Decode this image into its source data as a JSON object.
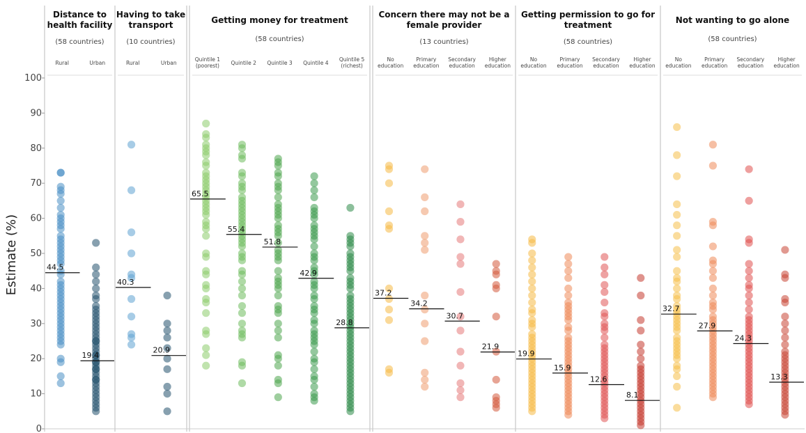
{
  "chart_data": {
    "type": "scatter",
    "ylabel": "Estimate (%)",
    "ylim": [
      0,
      100
    ],
    "yticks": [
      0,
      10,
      20,
      30,
      40,
      50,
      60,
      70,
      80,
      90,
      100
    ],
    "grid": false,
    "panels": [
      {
        "id": "distance",
        "title_lines": [
          "Distance to",
          "health facility"
        ],
        "count": "(58 countries)",
        "palette": [
          "#4a90c4",
          "#24526e"
        ],
        "groups": [
          {
            "name": [
              "Rural"
            ],
            "median": 44.5,
            "values": [
              73,
              73,
              69,
              68,
              67,
              65,
              63,
              61,
              60,
              59,
              58,
              57,
              55,
              54,
              53,
              52,
              51,
              50,
              49,
              48,
              47,
              45,
              44,
              42,
              41,
              40,
              39,
              38,
              37,
              36,
              35,
              34,
              33,
              32,
              31,
              30,
              29,
              28,
              27,
              26,
              25,
              24,
              20,
              19,
              15,
              13
            ]
          },
          {
            "name": [
              "Urban"
            ],
            "median": 19.4,
            "values": [
              53,
              46,
              44,
              42,
              40,
              38,
              37,
              35,
              34,
              33,
              32,
              31,
              30,
              29,
              28,
              27,
              26,
              25,
              25,
              24,
              23,
              22,
              21,
              21,
              20,
              19,
              19,
              18,
              17,
              17,
              16,
              15,
              14,
              14,
              13,
              12,
              11,
              10,
              9,
              8,
              7,
              6,
              5
            ]
          }
        ]
      },
      {
        "id": "transport",
        "title_lines": [
          "Having to take",
          "transport"
        ],
        "count": "(10 countries)",
        "palette": [
          "#5fa3d1",
          "#24526e"
        ],
        "groups": [
          {
            "name": [
              "Rural"
            ],
            "median": 40.3,
            "values": [
              81,
              68,
              56,
              50,
              44,
              43,
              37,
              32,
              27,
              26,
              24
            ]
          },
          {
            "name": [
              "Urban"
            ],
            "median": 20.9,
            "values": [
              38,
              30,
              28,
              26,
              23,
              20,
              17,
              12,
              10,
              5
            ]
          }
        ]
      },
      {
        "id": "money",
        "title_lines": [
          "Getting money for treatment"
        ],
        "count": "(58 countries)",
        "palette": [
          "#8ccc6b",
          "#6dbb5c",
          "#4ea64f",
          "#3c9a4e",
          "#2e8a49"
        ],
        "groups": [
          {
            "name": [
              "Quintile 1",
              "(poorest)"
            ],
            "median": 65.5,
            "values": [
              87,
              84,
              83,
              81,
              80,
              79,
              78,
              76,
              75,
              73,
              72,
              71,
              70,
              69,
              68,
              67,
              66,
              65,
              64,
              63,
              62,
              61,
              59,
              58,
              57,
              55,
              50,
              49,
              45,
              44,
              41,
              40,
              37,
              36,
              33,
              28,
              27,
              23,
              21,
              18
            ]
          },
          {
            "name": [
              "Quintile 2"
            ],
            "median": 55.4,
            "values": [
              81,
              80,
              78,
              77,
              73,
              72,
              70,
              69,
              68,
              66,
              65,
              64,
              63,
              62,
              61,
              60,
              59,
              58,
              57,
              56,
              55,
              54,
              53,
              52,
              50,
              49,
              48,
              45,
              44,
              42,
              40,
              38,
              35,
              33,
              30,
              28,
              27,
              26,
              19,
              18,
              13
            ]
          },
          {
            "name": [
              "Quintile 3"
            ],
            "median": 51.8,
            "values": [
              77,
              76,
              75,
              73,
              72,
              70,
              69,
              68,
              66,
              64,
              63,
              62,
              61,
              60,
              58,
              57,
              56,
              55,
              53,
              51,
              50,
              49,
              48,
              45,
              43,
              42,
              41,
              40,
              38,
              35,
              34,
              33,
              30,
              28,
              26,
              21,
              20,
              18,
              14,
              13,
              9
            ]
          },
          {
            "name": [
              "Quintile 4"
            ],
            "median": 42.9,
            "values": [
              72,
              70,
              68,
              66,
              63,
              62,
              61,
              60,
              58,
              57,
              56,
              55,
              54,
              52,
              50,
              49,
              48,
              46,
              45,
              44,
              42,
              41,
              40,
              38,
              37,
              35,
              34,
              33,
              31,
              30,
              28,
              27,
              26,
              25,
              24,
              22,
              20,
              19,
              17,
              15,
              14,
              12,
              10,
              9,
              8
            ]
          },
          {
            "name": [
              "Quintile 5",
              "(richest)"
            ],
            "median": 28.8,
            "values": [
              63,
              55,
              54,
              53,
              52,
              50,
              49,
              48,
              47,
              46,
              45,
              43,
              42,
              41,
              40,
              38,
              37,
              36,
              35,
              34,
              33,
              32,
              31,
              30,
              29,
              28,
              27,
              26,
              25,
              24,
              23,
              22,
              21,
              20,
              19,
              18,
              17,
              16,
              15,
              14,
              13,
              12,
              11,
              10,
              9,
              8,
              7,
              6,
              5
            ]
          }
        ]
      },
      {
        "id": "female",
        "title_lines": [
          "Concern there may not be a",
          "female provider"
        ],
        "count": "(13 countries)",
        "palette": [
          "#f5b945",
          "#ef9c6f",
          "#e57a7a",
          "#d45a3c"
        ],
        "groups": [
          {
            "name": [
              "No",
              "education"
            ],
            "median": 37.2,
            "values": [
              75,
              74,
              70,
              62,
              58,
              57,
              40,
              37,
              34,
              31,
              17,
              16
            ]
          },
          {
            "name": [
              "Primary",
              "education"
            ],
            "median": 34.2,
            "values": [
              74,
              66,
              62,
              55,
              53,
              51,
              38,
              34,
              30,
              25,
              16,
              14,
              12
            ]
          },
          {
            "name": [
              "Secondary",
              "education"
            ],
            "median": 30.7,
            "values": [
              64,
              59,
              54,
              49,
              47,
              39,
              32,
              28,
              22,
              18,
              13,
              11,
              9
            ]
          },
          {
            "name": [
              "Higher",
              "education"
            ],
            "median": 21.9,
            "values": [
              47,
              45,
              44,
              41,
              40,
              32,
              22,
              14,
              9,
              8,
              7,
              6
            ]
          }
        ]
      },
      {
        "id": "permission",
        "title_lines": [
          "Getting permission to go for",
          "treatment"
        ],
        "count": "(58 countries)",
        "palette": [
          "#f5b945",
          "#ef8a5a",
          "#e05555",
          "#c43a30"
        ],
        "groups": [
          {
            "name": [
              "No",
              "education"
            ],
            "median": 19.9,
            "values": [
              54,
              53,
              50,
              48,
              46,
              44,
              42,
              40,
              38,
              36,
              34,
              33,
              31,
              30,
              29,
              27,
              26,
              25,
              24,
              23,
              22,
              21,
              20,
              19,
              18,
              17,
              16,
              15,
              14,
              13,
              12,
              11,
              10,
              9,
              8,
              7,
              6,
              5
            ]
          },
          {
            "name": [
              "Primary",
              "education"
            ],
            "median": 15.9,
            "values": [
              49,
              47,
              45,
              43,
              40,
              38,
              36,
              35,
              34,
              33,
              32,
              31,
              29,
              28,
              26,
              25,
              24,
              23,
              22,
              21,
              20,
              19,
              18,
              17,
              16,
              15,
              14,
              13,
              12,
              11,
              10,
              9,
              8,
              7,
              6,
              5,
              4
            ]
          },
          {
            "name": [
              "Secondary",
              "education"
            ],
            "median": 12.6,
            "values": [
              49,
              46,
              44,
              41,
              39,
              36,
              33,
              32,
              30,
              29,
              28,
              26,
              24,
              23,
              22,
              21,
              20,
              19,
              18,
              17,
              16,
              15,
              14,
              13,
              12,
              11,
              10,
              9,
              8,
              7,
              6,
              5,
              4,
              3
            ]
          },
          {
            "name": [
              "Higher",
              "education"
            ],
            "median": 8.1,
            "values": [
              43,
              38,
              31,
              28,
              24,
              22,
              20,
              18,
              17,
              16,
              15,
              14,
              13,
              12,
              11,
              10,
              9,
              8,
              7,
              6,
              5,
              4,
              3,
              2,
              1
            ]
          }
        ]
      },
      {
        "id": "alone",
        "title_lines": [
          "Not wanting to go alone"
        ],
        "count": "(58 countries)",
        "palette": [
          "#f5c04a",
          "#ef8a5a",
          "#e0504f",
          "#c94634"
        ],
        "groups": [
          {
            "name": [
              "No",
              "education"
            ],
            "median": 32.7,
            "values": [
              86,
              78,
              72,
              64,
              61,
              58,
              55,
              51,
              49,
              45,
              43,
              42,
              40,
              38,
              37,
              35,
              34,
              33,
              32,
              31,
              30,
              29,
              28,
              26,
              25,
              24,
              23,
              22,
              21,
              20,
              18,
              17,
              15,
              12,
              6
            ]
          },
          {
            "name": [
              "Primary",
              "education"
            ],
            "median": 27.9,
            "values": [
              81,
              75,
              59,
              58,
              52,
              48,
              47,
              45,
              43,
              40,
              38,
              36,
              35,
              34,
              32,
              31,
              30,
              29,
              28,
              27,
              26,
              25,
              24,
              23,
              22,
              21,
              20,
              19,
              18,
              17,
              16,
              15,
              14,
              13,
              12,
              11,
              10,
              9
            ]
          },
          {
            "name": [
              "Secondary",
              "education"
            ],
            "median": 24.3,
            "values": [
              74,
              65,
              54,
              53,
              47,
              45,
              43,
              41,
              40,
              38,
              36,
              34,
              32,
              31,
              30,
              29,
              28,
              27,
              26,
              25,
              24,
              23,
              22,
              21,
              20,
              19,
              18,
              17,
              16,
              15,
              14,
              13,
              12,
              11,
              10,
              9,
              8,
              7
            ]
          },
          {
            "name": [
              "Higher",
              "education"
            ],
            "median": 13.3,
            "values": [
              51,
              44,
              43,
              37,
              36,
              32,
              30,
              28,
              26,
              24,
              22,
              21,
              20,
              19,
              18,
              17,
              16,
              15,
              14,
              13,
              12,
              11,
              10,
              9,
              8,
              7,
              6,
              5,
              4
            ]
          }
        ]
      }
    ]
  }
}
